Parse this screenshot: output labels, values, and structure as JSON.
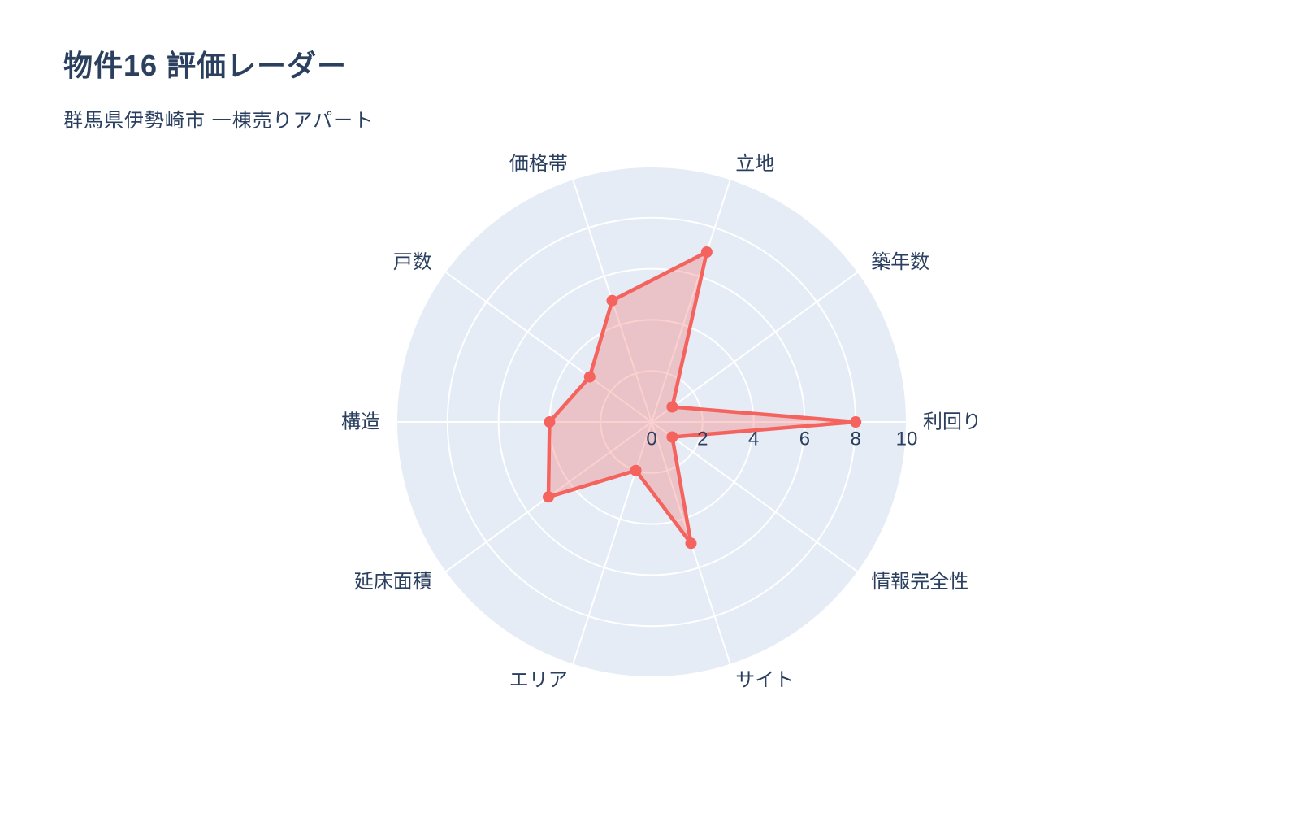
{
  "header": {
    "title": "物件16 評価レーダー",
    "subtitle": "群馬県伊勢崎市 一棟売りアパート"
  },
  "chart_data": {
    "type": "radar",
    "title": "物件16 評価レーダー",
    "subtitle": "群馬県伊勢崎市 一棟売りアパート",
    "categories": [
      "利回り",
      "築年数",
      "立地",
      "価格帯",
      "戸数",
      "構造",
      "延床面積",
      "エリア",
      "サイト",
      "情報完全性"
    ],
    "values": [
      8,
      1,
      7,
      5,
      3,
      4,
      5,
      2,
      5,
      1
    ],
    "angle_start_deg": 0,
    "direction": "counterclockwise",
    "rlim": [
      0,
      10
    ],
    "rticks": [
      0,
      2,
      4,
      6,
      8,
      10
    ],
    "grid": true,
    "legend": false,
    "colors": {
      "line": "#f4635e",
      "fill": "rgba(244,99,94,0.3)",
      "plot_bg": "#e5ecf6",
      "grid_line": "#ffffff",
      "text": "#2a3f5f",
      "title_text": "#2b3f5f"
    }
  }
}
